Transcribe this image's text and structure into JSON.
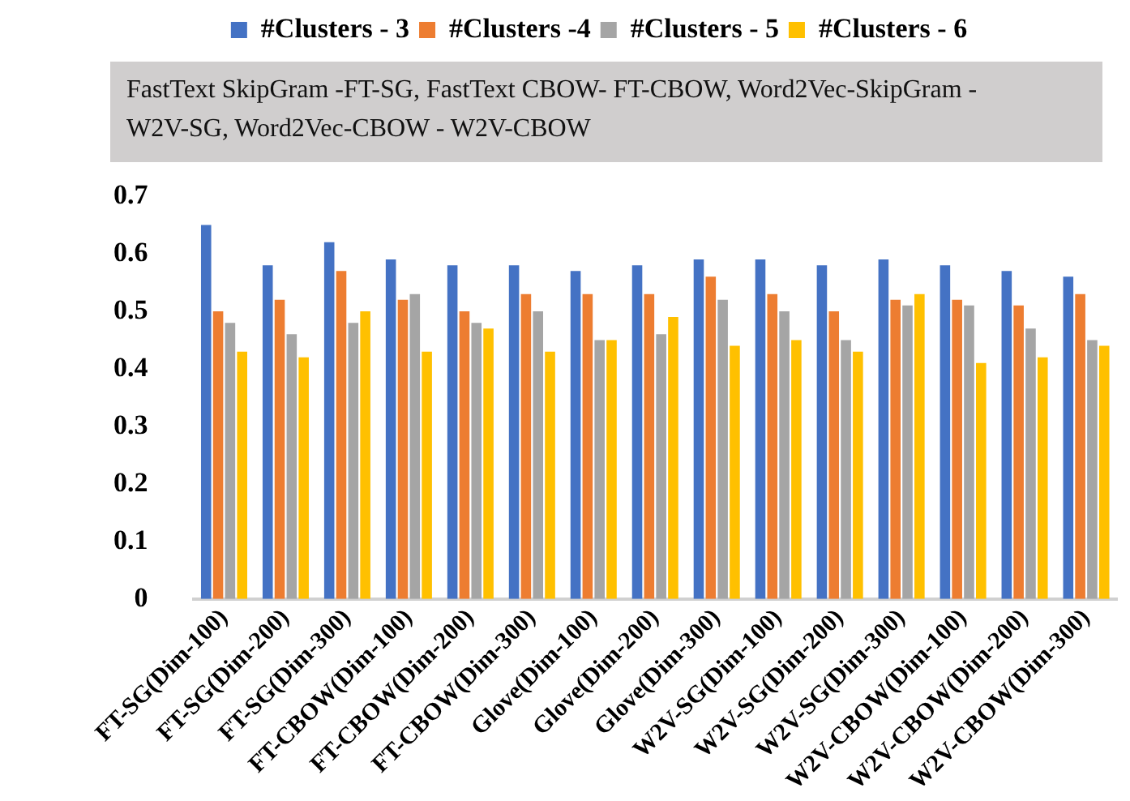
{
  "chart_data": {
    "type": "bar",
    "subtitle": "FastText SkipGram -FT-SG, FastText CBOW- FT-CBOW, Word2Vec-SkipGram - W2V-SG, Word2Vec-CBOW - W2V-CBOW",
    "categories": [
      "FT-SG(Dim-100)",
      "FT-SG(Dim-200)",
      "FT-SG(Dim-300)",
      "FT-CBOW(Dim-100)",
      "FT-CBOW(Dim-200)",
      "FT-CBOW(Dim-300)",
      "Glove(Dim-100)",
      "Glove(Dim-200)",
      "Glove(Dim-300)",
      "W2V-SG(Dim-100)",
      "W2V-SG(Dim-200)",
      "W2V-SG(Dim-300)",
      "W2V-CBOW(Dim-100)",
      "W2V-CBOW(Dim-200)",
      "W2V-CBOW(Dim-300)"
    ],
    "series": [
      {
        "name": "#Clusters - 3",
        "color": "#4472c4",
        "values": [
          0.65,
          0.58,
          0.62,
          0.59,
          0.58,
          0.58,
          0.57,
          0.58,
          0.59,
          0.59,
          0.58,
          0.59,
          0.58,
          0.57,
          0.56
        ]
      },
      {
        "name": "#Clusters -4",
        "color": "#ed7d31",
        "values": [
          0.5,
          0.52,
          0.57,
          0.52,
          0.5,
          0.53,
          0.53,
          0.53,
          0.56,
          0.53,
          0.5,
          0.52,
          0.52,
          0.51,
          0.53
        ]
      },
      {
        "name": "#Clusters - 5",
        "color": "#a5a5a5",
        "values": [
          0.48,
          0.46,
          0.48,
          0.53,
          0.48,
          0.5,
          0.45,
          0.46,
          0.52,
          0.5,
          0.45,
          0.51,
          0.51,
          0.47,
          0.45
        ]
      },
      {
        "name": "#Clusters - 6",
        "color": "#ffc000",
        "values": [
          0.43,
          0.42,
          0.5,
          0.43,
          0.47,
          0.43,
          0.45,
          0.49,
          0.44,
          0.45,
          0.43,
          0.53,
          0.41,
          0.42,
          0.44
        ]
      }
    ],
    "ylim": [
      0,
      0.7
    ],
    "yticks": [
      0,
      0.1,
      0.2,
      0.3,
      0.4,
      0.5,
      0.6,
      0.7
    ],
    "grid": false,
    "legend": "top"
  }
}
